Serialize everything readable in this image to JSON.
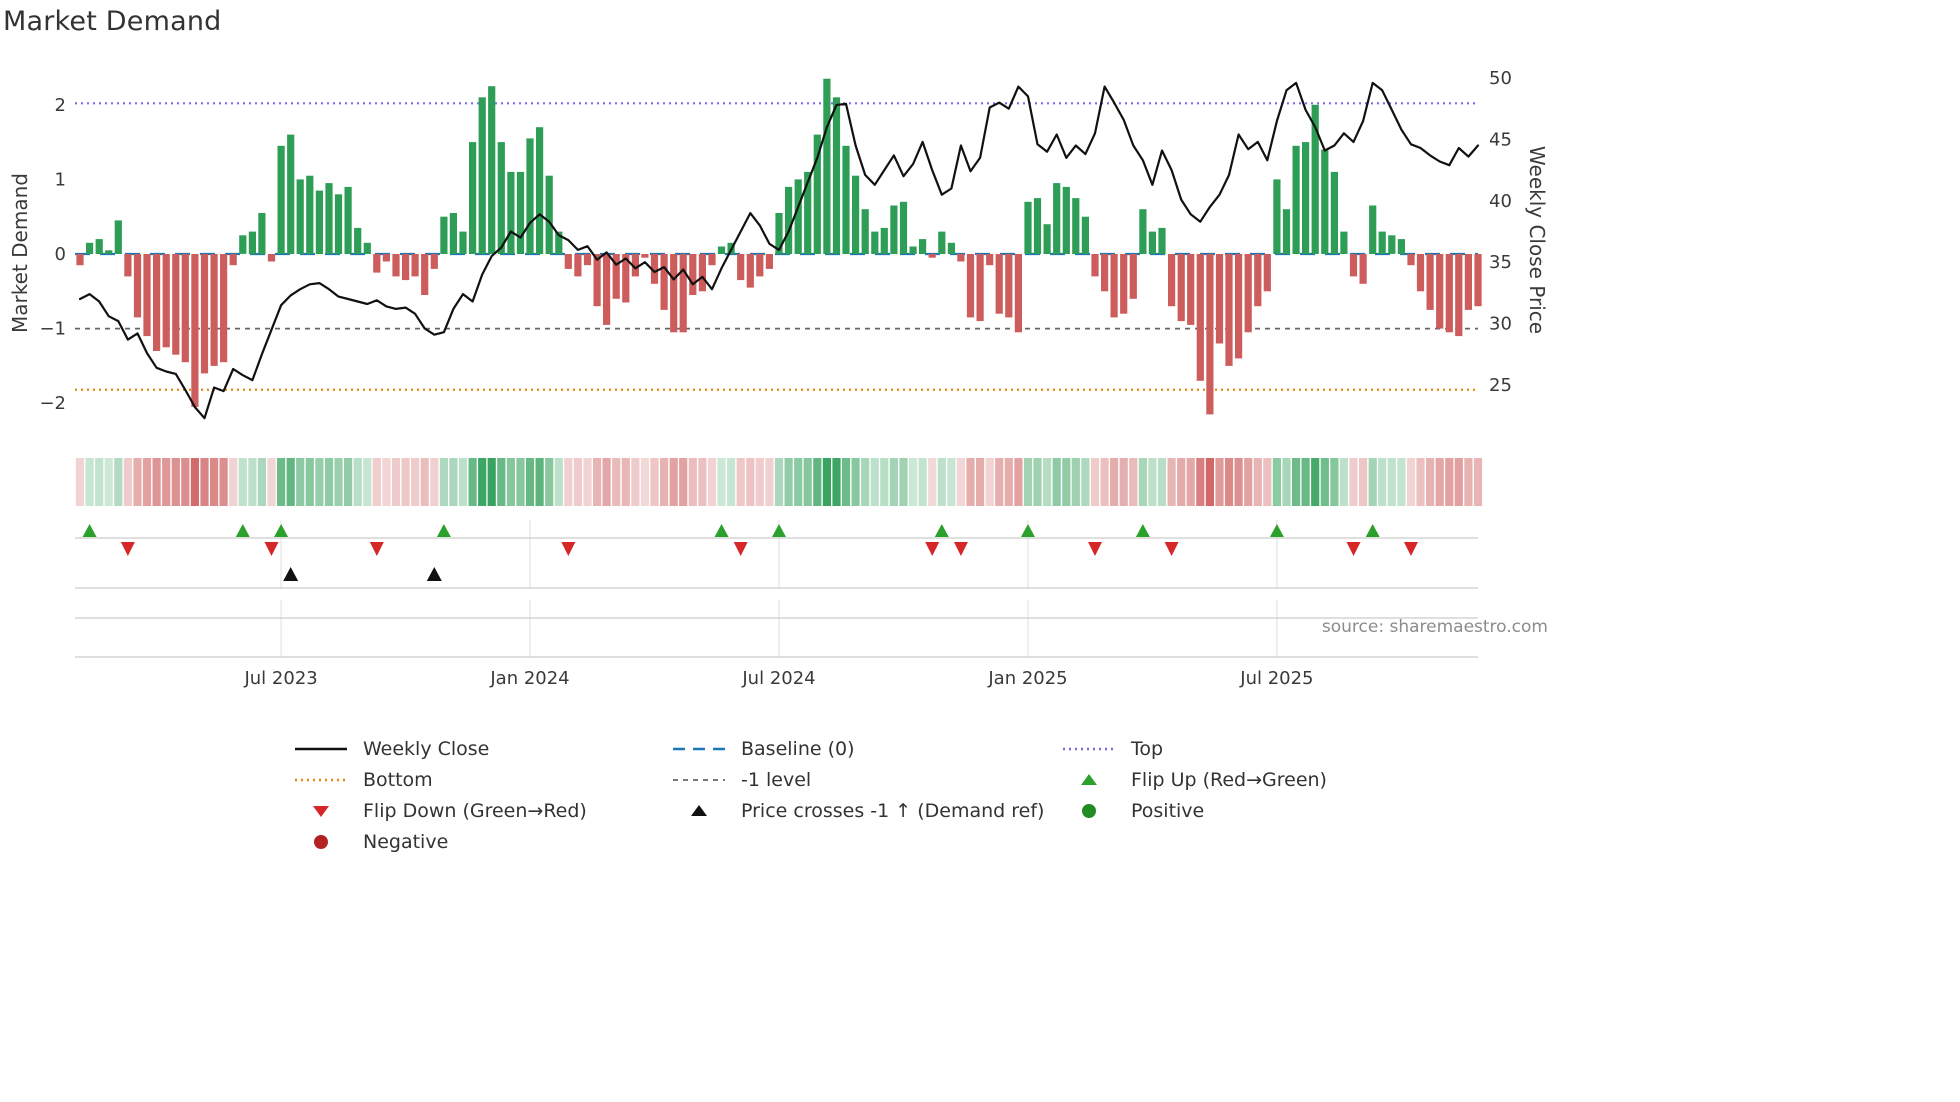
{
  "title": "Market Demand",
  "source": "source: sharemaestro.com",
  "y_left": {
    "label": "Market Demand",
    "ticks": [
      -2,
      -1,
      0,
      1,
      2
    ]
  },
  "y_right": {
    "label": "Weekly Close Price",
    "ticks": [
      25,
      30,
      35,
      40,
      45,
      50
    ]
  },
  "x_ticks": [
    {
      "index": 21,
      "label": "Jul 2023"
    },
    {
      "index": 47,
      "label": "Jan 2024"
    },
    {
      "index": 73,
      "label": "Jul 2024"
    },
    {
      "index": 99,
      "label": "Jan 2025"
    },
    {
      "index": 125,
      "label": "Jul 2025"
    }
  ],
  "colors": {
    "green_bar": "#2e9e57",
    "red_bar": "#cd5c5c",
    "price_line": "#111111",
    "baseline": "#1f77b4",
    "top": "#7b68ee",
    "bottom": "#e8860d",
    "minus1": "#666666",
    "flip_up": "#2ca02c",
    "flip_down": "#d62728",
    "cross": "#111111",
    "positive": "#228b22",
    "negative": "#b22222",
    "grid": "#cccccc"
  },
  "chart_data": {
    "type": "bar+line",
    "x_unit": "week",
    "demand_ylim": [
      -2.6,
      2.6
    ],
    "price_ylim": [
      20,
      51
    ],
    "baseline": 0,
    "top_level": 2.02,
    "bottom_level": -1.82,
    "minus1_level": -1,
    "demand": [
      -0.15,
      0.15,
      0.2,
      0.05,
      0.45,
      -0.3,
      -0.85,
      -1.1,
      -1.3,
      -1.25,
      -1.35,
      -1.45,
      -2.05,
      -1.6,
      -1.5,
      -1.45,
      -0.15,
      0.25,
      0.3,
      0.55,
      -0.1,
      1.45,
      1.6,
      1.0,
      1.05,
      0.85,
      0.95,
      0.8,
      0.9,
      0.35,
      0.15,
      -0.25,
      -0.1,
      -0.3,
      -0.35,
      -0.3,
      -0.55,
      -0.2,
      0.5,
      0.55,
      0.3,
      1.5,
      2.1,
      2.25,
      1.5,
      1.1,
      1.1,
      1.55,
      1.7,
      1.05,
      0.3,
      -0.2,
      -0.3,
      -0.15,
      -0.7,
      -0.95,
      -0.6,
      -0.65,
      -0.3,
      -0.05,
      -0.4,
      -0.75,
      -1.05,
      -1.05,
      -0.55,
      -0.5,
      -0.15,
      0.1,
      0.15,
      -0.35,
      -0.45,
      -0.3,
      -0.2,
      0.55,
      0.9,
      1.0,
      1.1,
      1.6,
      2.35,
      2.1,
      1.45,
      1.05,
      0.6,
      0.3,
      0.35,
      0.65,
      0.7,
      0.1,
      0.2,
      -0.05,
      0.3,
      0.15,
      -0.1,
      -0.85,
      -0.9,
      -0.15,
      -0.8,
      -0.85,
      -1.05,
      0.7,
      0.75,
      0.4,
      0.95,
      0.9,
      0.75,
      0.5,
      -0.3,
      -0.5,
      -0.85,
      -0.8,
      -0.6,
      0.6,
      0.3,
      0.35,
      -0.7,
      -0.9,
      -0.95,
      -1.7,
      -2.15,
      -1.2,
      -1.5,
      -1.4,
      -1.05,
      -0.7,
      -0.5,
      1.0,
      0.6,
      1.45,
      1.5,
      2.0,
      1.4,
      1.1,
      0.3,
      -0.3,
      -0.4,
      0.65,
      0.3,
      0.25,
      0.2,
      -0.15,
      -0.5,
      -0.75,
      -1.0,
      -1.05,
      -1.1,
      -0.75,
      -0.7
    ],
    "price": [
      32.0,
      32.4,
      31.8,
      30.6,
      30.2,
      28.7,
      29.2,
      27.6,
      26.4,
      26.1,
      25.9,
      24.6,
      23.2,
      22.3,
      24.8,
      24.5,
      26.3,
      25.8,
      25.4,
      27.5,
      29.5,
      31.5,
      32.3,
      32.8,
      33.2,
      33.3,
      32.8,
      32.2,
      32.0,
      31.8,
      31.6,
      31.9,
      31.4,
      31.2,
      31.3,
      30.8,
      29.6,
      29.1,
      29.3,
      31.2,
      32.4,
      31.8,
      34.0,
      35.5,
      36.2,
      37.5,
      37.0,
      38.2,
      38.9,
      38.3,
      37.2,
      36.8,
      36.0,
      36.3,
      35.2,
      35.8,
      34.8,
      35.3,
      34.5,
      35.0,
      34.2,
      34.6,
      33.6,
      34.4,
      33.2,
      33.8,
      32.8,
      34.5,
      36.0,
      37.5,
      39.0,
      38.0,
      36.5,
      36.0,
      37.5,
      39.5,
      41.5,
      43.5,
      46.0,
      47.8,
      47.9,
      44.5,
      42.1,
      41.3,
      42.5,
      43.7,
      42.0,
      43.0,
      44.8,
      42.5,
      40.5,
      41.0,
      44.5,
      42.4,
      43.5,
      47.6,
      48.0,
      47.5,
      49.3,
      48.5,
      44.6,
      44.0,
      45.4,
      43.5,
      44.5,
      43.8,
      45.5,
      49.3,
      48.0,
      46.6,
      44.5,
      43.3,
      41.3,
      44.1,
      42.5,
      40.1,
      38.9,
      38.3,
      39.5,
      40.5,
      42.1,
      45.4,
      44.2,
      44.8,
      43.3,
      46.5,
      49.0,
      49.6,
      47.4,
      46.0,
      44.1,
      44.5,
      45.5,
      44.8,
      46.5,
      49.6,
      49.0,
      47.4,
      45.8,
      44.6,
      44.3,
      43.7,
      43.2,
      42.9,
      44.3,
      43.6,
      44.5
    ],
    "flip_up_weeks": [
      1,
      17,
      21,
      38,
      67,
      73,
      90,
      99,
      111,
      125,
      135
    ],
    "flip_down_weeks": [
      5,
      20,
      31,
      51,
      69,
      89,
      92,
      106,
      114,
      133,
      139
    ],
    "price_cross_weeks": [
      22,
      37
    ]
  },
  "legend": {
    "items": [
      {
        "label": "Weekly Close",
        "swatch": "line-solid-black"
      },
      {
        "label": "Baseline (0)",
        "swatch": "line-dashed-blue"
      },
      {
        "label": "Top",
        "swatch": "line-dotted-purple"
      },
      {
        "label": "Bottom",
        "swatch": "line-dotted-orange"
      },
      {
        "label": "-1 level",
        "swatch": "line-dashed-gray"
      },
      {
        "label": "Flip Up (Red→Green)",
        "swatch": "triangle-up-green"
      },
      {
        "label": "Flip Down (Green→Red)",
        "swatch": "triangle-down-red"
      },
      {
        "label": "Price crosses -1 ↑ (Demand ref)",
        "swatch": "triangle-up-black"
      },
      {
        "label": "Positive",
        "swatch": "circle-green"
      },
      {
        "label": "Negative",
        "swatch": "circle-darkred"
      }
    ]
  }
}
